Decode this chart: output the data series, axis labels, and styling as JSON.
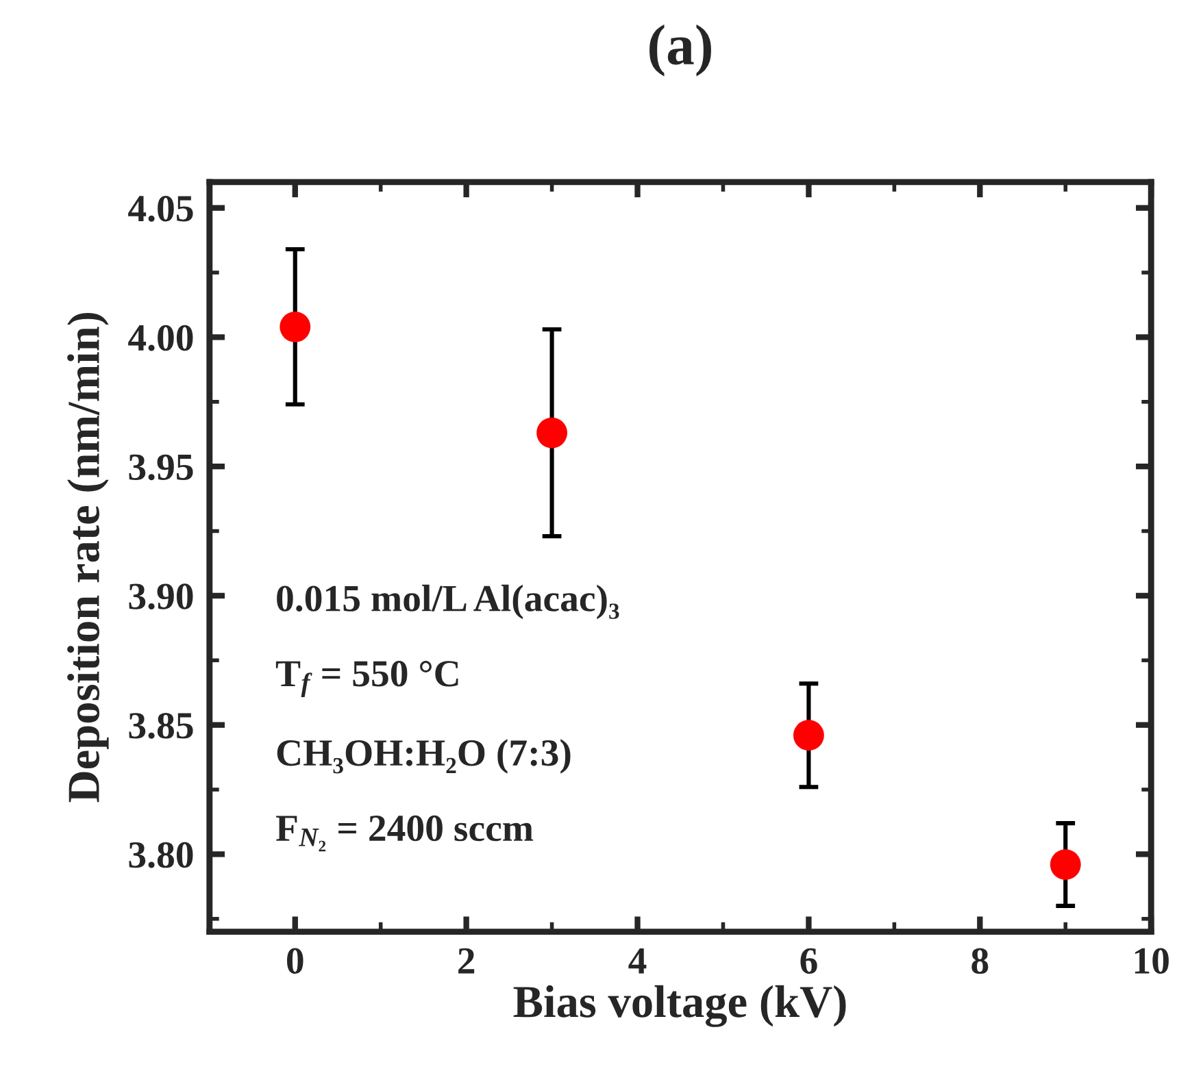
{
  "chart_data": {
    "type": "scatter",
    "title": "(a)",
    "xlabel": "Bias voltage (kV)",
    "ylabel": "Deposition rate (nm/min)",
    "x": [
      0,
      3,
      6,
      9
    ],
    "series": [
      {
        "color": "#ff0000",
        "values": [
          4.004,
          3.963,
          3.846,
          3.796
        ],
        "errors": [
          0.03,
          0.04,
          0.02,
          0.016
        ]
      }
    ],
    "marker": "circle",
    "xlim": [
      -1,
      10
    ],
    "xticks": [
      0,
      2,
      4,
      6,
      8,
      10
    ],
    "ylim": [
      3.77,
      4.06
    ],
    "yticks": [
      {
        "value": 3.8,
        "label": "3.80"
      },
      3.85,
      {
        "value": 3.9,
        "label": "3.90"
      },
      3.95,
      {
        "value": 4.0,
        "label": "4.00"
      },
      4.05
    ],
    "grid": false,
    "legend": false,
    "annotations": [
      "0.015 mol/L Al(acac)₃",
      "T$_{f}$ = 550 °C",
      "CH₃OH:H₂O (7:3)",
      "F$_{N₂}$ = 2400 sccm"
    ]
  }
}
